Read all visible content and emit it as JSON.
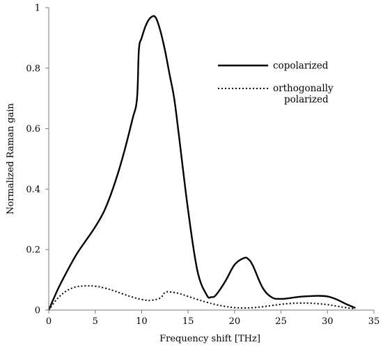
{
  "chart_data": {
    "type": "line",
    "xlabel": "Frequency shift [THz]",
    "ylabel": "Normalized Raman gain",
    "xlim": [
      0,
      35
    ],
    "ylim": [
      0,
      1
    ],
    "xticks": [
      "0",
      "5",
      "10",
      "15",
      "20",
      "25",
      "30",
      "35"
    ],
    "yticks": [
      "0",
      "0.2",
      "0.4",
      "0.6",
      "0.8",
      "1"
    ],
    "legend_position": "top-right",
    "grid": false,
    "series": [
      {
        "name": "copolarized",
        "style": "solid",
        "color": "#000000",
        "x": [
          0,
          1,
          2,
          3,
          4,
          5,
          6,
          7,
          8,
          9,
          9.5,
          9.7,
          10,
          10.5,
          11,
          11.5,
          12,
          12.5,
          13,
          13.5,
          14,
          15,
          16,
          17,
          17.5,
          18,
          19,
          20,
          21,
          21.5,
          22,
          23,
          24,
          25,
          26,
          27,
          28,
          29,
          30,
          31,
          32,
          33
        ],
        "y": [
          0,
          0.07,
          0.13,
          0.185,
          0.23,
          0.275,
          0.33,
          0.41,
          0.51,
          0.63,
          0.7,
          0.86,
          0.9,
          0.945,
          0.968,
          0.968,
          0.925,
          0.86,
          0.78,
          0.7,
          0.58,
          0.33,
          0.13,
          0.05,
          0.043,
          0.05,
          0.095,
          0.15,
          0.172,
          0.168,
          0.145,
          0.075,
          0.042,
          0.037,
          0.04,
          0.044,
          0.046,
          0.047,
          0.045,
          0.035,
          0.02,
          0.007
        ]
      },
      {
        "name": "orthogonally polarized",
        "legend_lines": [
          "orthogonally",
          "polarized"
        ],
        "style": "dotted",
        "color": "#000000",
        "x": [
          0,
          1,
          2,
          3,
          4,
          5,
          6,
          7,
          8,
          9,
          10,
          11,
          12,
          12.5,
          13,
          14,
          15,
          16,
          17,
          18,
          19,
          20,
          21,
          22,
          23,
          24,
          25,
          26,
          27,
          28,
          29,
          30,
          31,
          32,
          33
        ],
        "y": [
          0,
          0.04,
          0.065,
          0.077,
          0.08,
          0.079,
          0.073,
          0.064,
          0.053,
          0.043,
          0.035,
          0.032,
          0.04,
          0.058,
          0.06,
          0.055,
          0.045,
          0.035,
          0.026,
          0.018,
          0.012,
          0.008,
          0.007,
          0.008,
          0.011,
          0.015,
          0.019,
          0.022,
          0.023,
          0.023,
          0.021,
          0.018,
          0.013,
          0.008,
          0.004
        ]
      }
    ]
  }
}
